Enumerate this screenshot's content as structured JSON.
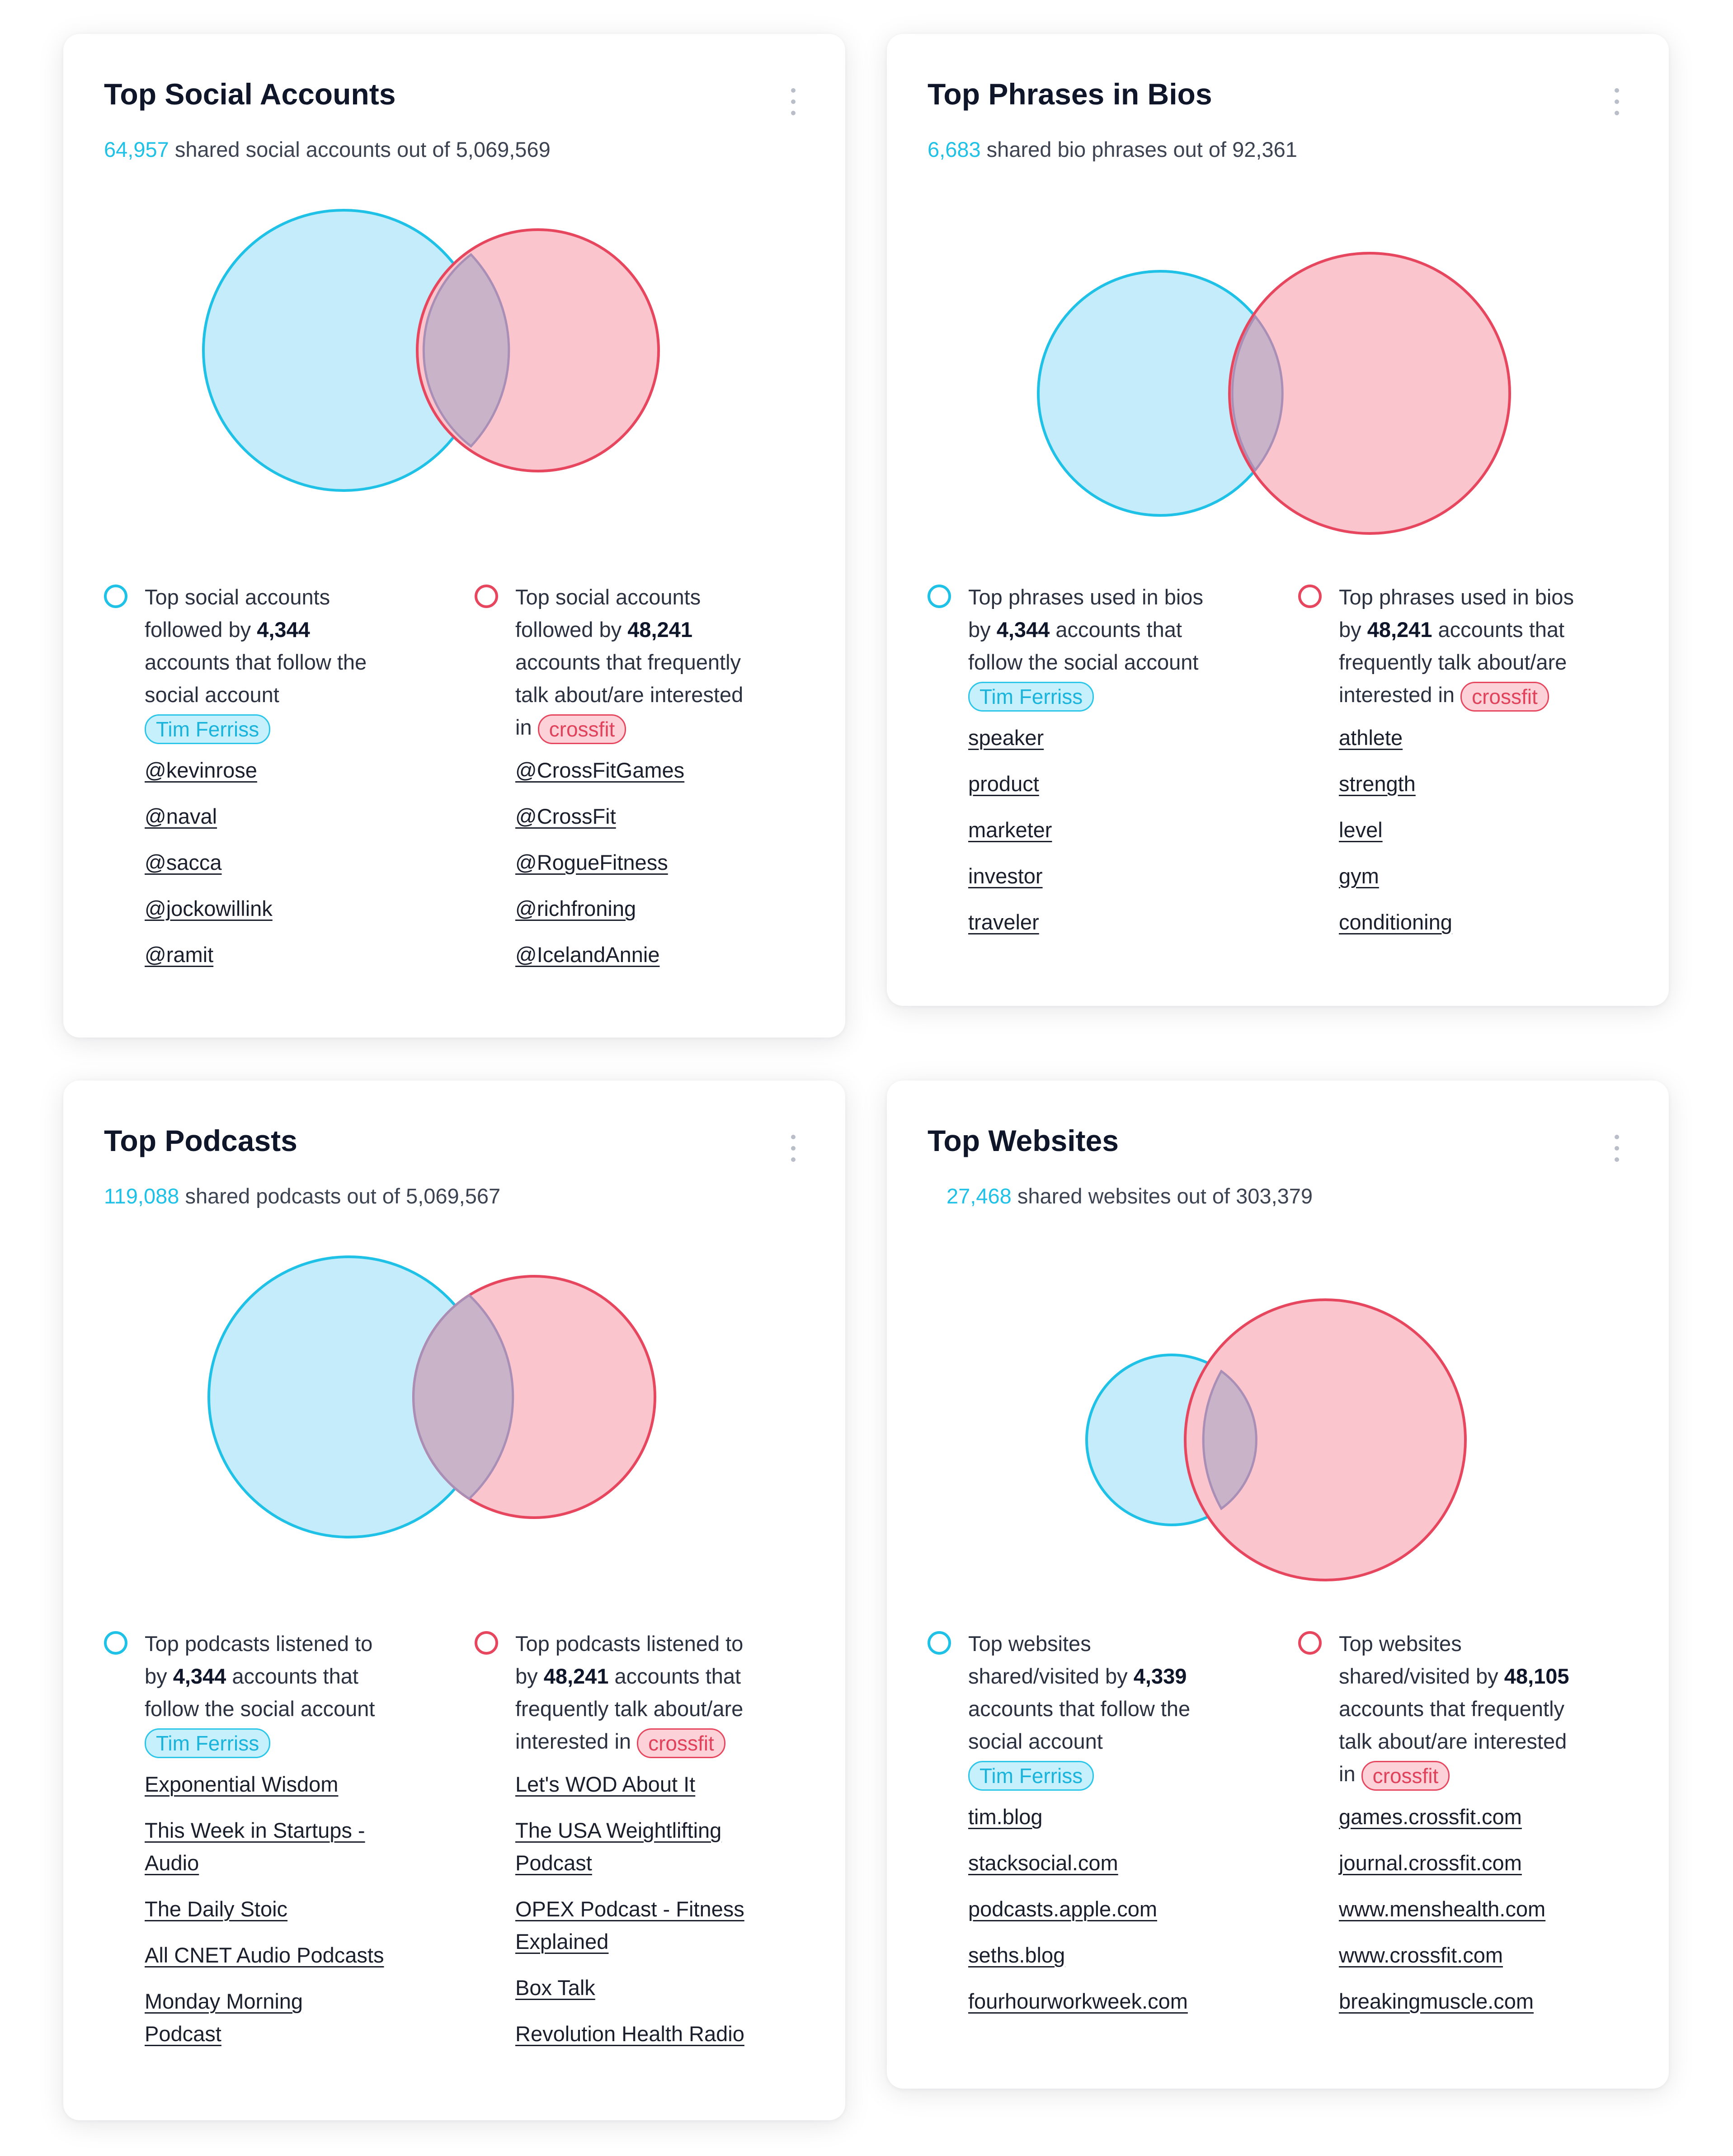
{
  "colors": {
    "cyan": "#1fc1e6",
    "cyan_fill": "#c5ecfa",
    "red": "#e6475f",
    "red_fill": "#fbc5ce",
    "overlap_fill": "#c8b3c9"
  },
  "menu_icon": "more-vertical-icon",
  "cards": {
    "social": {
      "title": "Top Social Accounts",
      "shared": "64,957",
      "shared_text": " shared social accounts out of 5,069,569",
      "left": {
        "text_a": "Top social accounts followed by ",
        "count": "4,344",
        "text_b": " accounts that follow the social account ",
        "chip": "Tim Ferriss",
        "items": [
          "@kevinrose",
          "@naval",
          "@sacca",
          "@jockowillink",
          "@ramit"
        ]
      },
      "right": {
        "text_a": "Top social accounts followed by ",
        "count": "48,241",
        "text_b": " accounts that frequently talk about/are interested in ",
        "chip": "crossfit",
        "items": [
          "@CrossFitGames",
          "@CrossFit",
          "@RogueFitness",
          "@richfroning",
          "@IcelandAnnie"
        ]
      }
    },
    "bios": {
      "title": "Top Phrases in Bios",
      "shared": "6,683",
      "shared_text": " shared bio phrases out of 92,361",
      "left": {
        "text_a": "Top phrases used in bios by ",
        "count": "4,344",
        "text_b": " accounts that follow the social account ",
        "chip": "Tim Ferriss",
        "items": [
          "speaker",
          "product",
          "marketer",
          "investor",
          "traveler"
        ]
      },
      "right": {
        "text_a": "Top phrases used in bios by ",
        "count": "48,241",
        "text_b": " accounts that frequently talk about/are interested in ",
        "chip": "crossfit",
        "items": [
          "athlete",
          "strength",
          "level",
          "gym",
          "conditioning"
        ]
      }
    },
    "podcasts": {
      "title": "Top Podcasts",
      "shared": "119,088",
      "shared_text": " shared podcasts out of 5,069,567",
      "left": {
        "text_a": "Top podcasts listened to by ",
        "count": "4,344",
        "text_b": " accounts that follow the social account ",
        "chip": "Tim Ferriss",
        "items": [
          "Exponential Wisdom",
          "This Week in Startups - Audio",
          "The Daily Stoic",
          "All CNET Audio Podcasts",
          "Monday Morning Podcast"
        ]
      },
      "right": {
        "text_a": "Top podcasts listened to by ",
        "count": "48,241",
        "text_b": " accounts that frequently talk about/are interested in ",
        "chip": "crossfit",
        "items": [
          "Let's WOD About It",
          "The USA Weightlifting Podcast",
          "OPEX Podcast - Fitness Explained",
          "Box Talk",
          "Revolution Health Radio"
        ]
      }
    },
    "websites": {
      "title": "Top Websites",
      "shared": "27,468",
      "shared_text": " shared websites out of 303,379",
      "left": {
        "text_a": "Top websites shared/visited by ",
        "count": "4,339",
        "text_b": " accounts that follow the social account ",
        "chip": "Tim Ferriss",
        "items": [
          "tim.blog",
          "stacksocial.com",
          "podcasts.apple.com",
          "seths.blog",
          "fourhourworkweek.com"
        ]
      },
      "right": {
        "text_a": "Top websites shared/visited by ",
        "count": "48,105",
        "text_b": " accounts that frequently talk about/are interested in ",
        "chip": "crossfit",
        "items": [
          "games.crossfit.com",
          "journal.crossfit.com",
          "www.menshealth.com",
          "www.crossfit.com",
          "breakingmuscle.com"
        ]
      }
    }
  }
}
